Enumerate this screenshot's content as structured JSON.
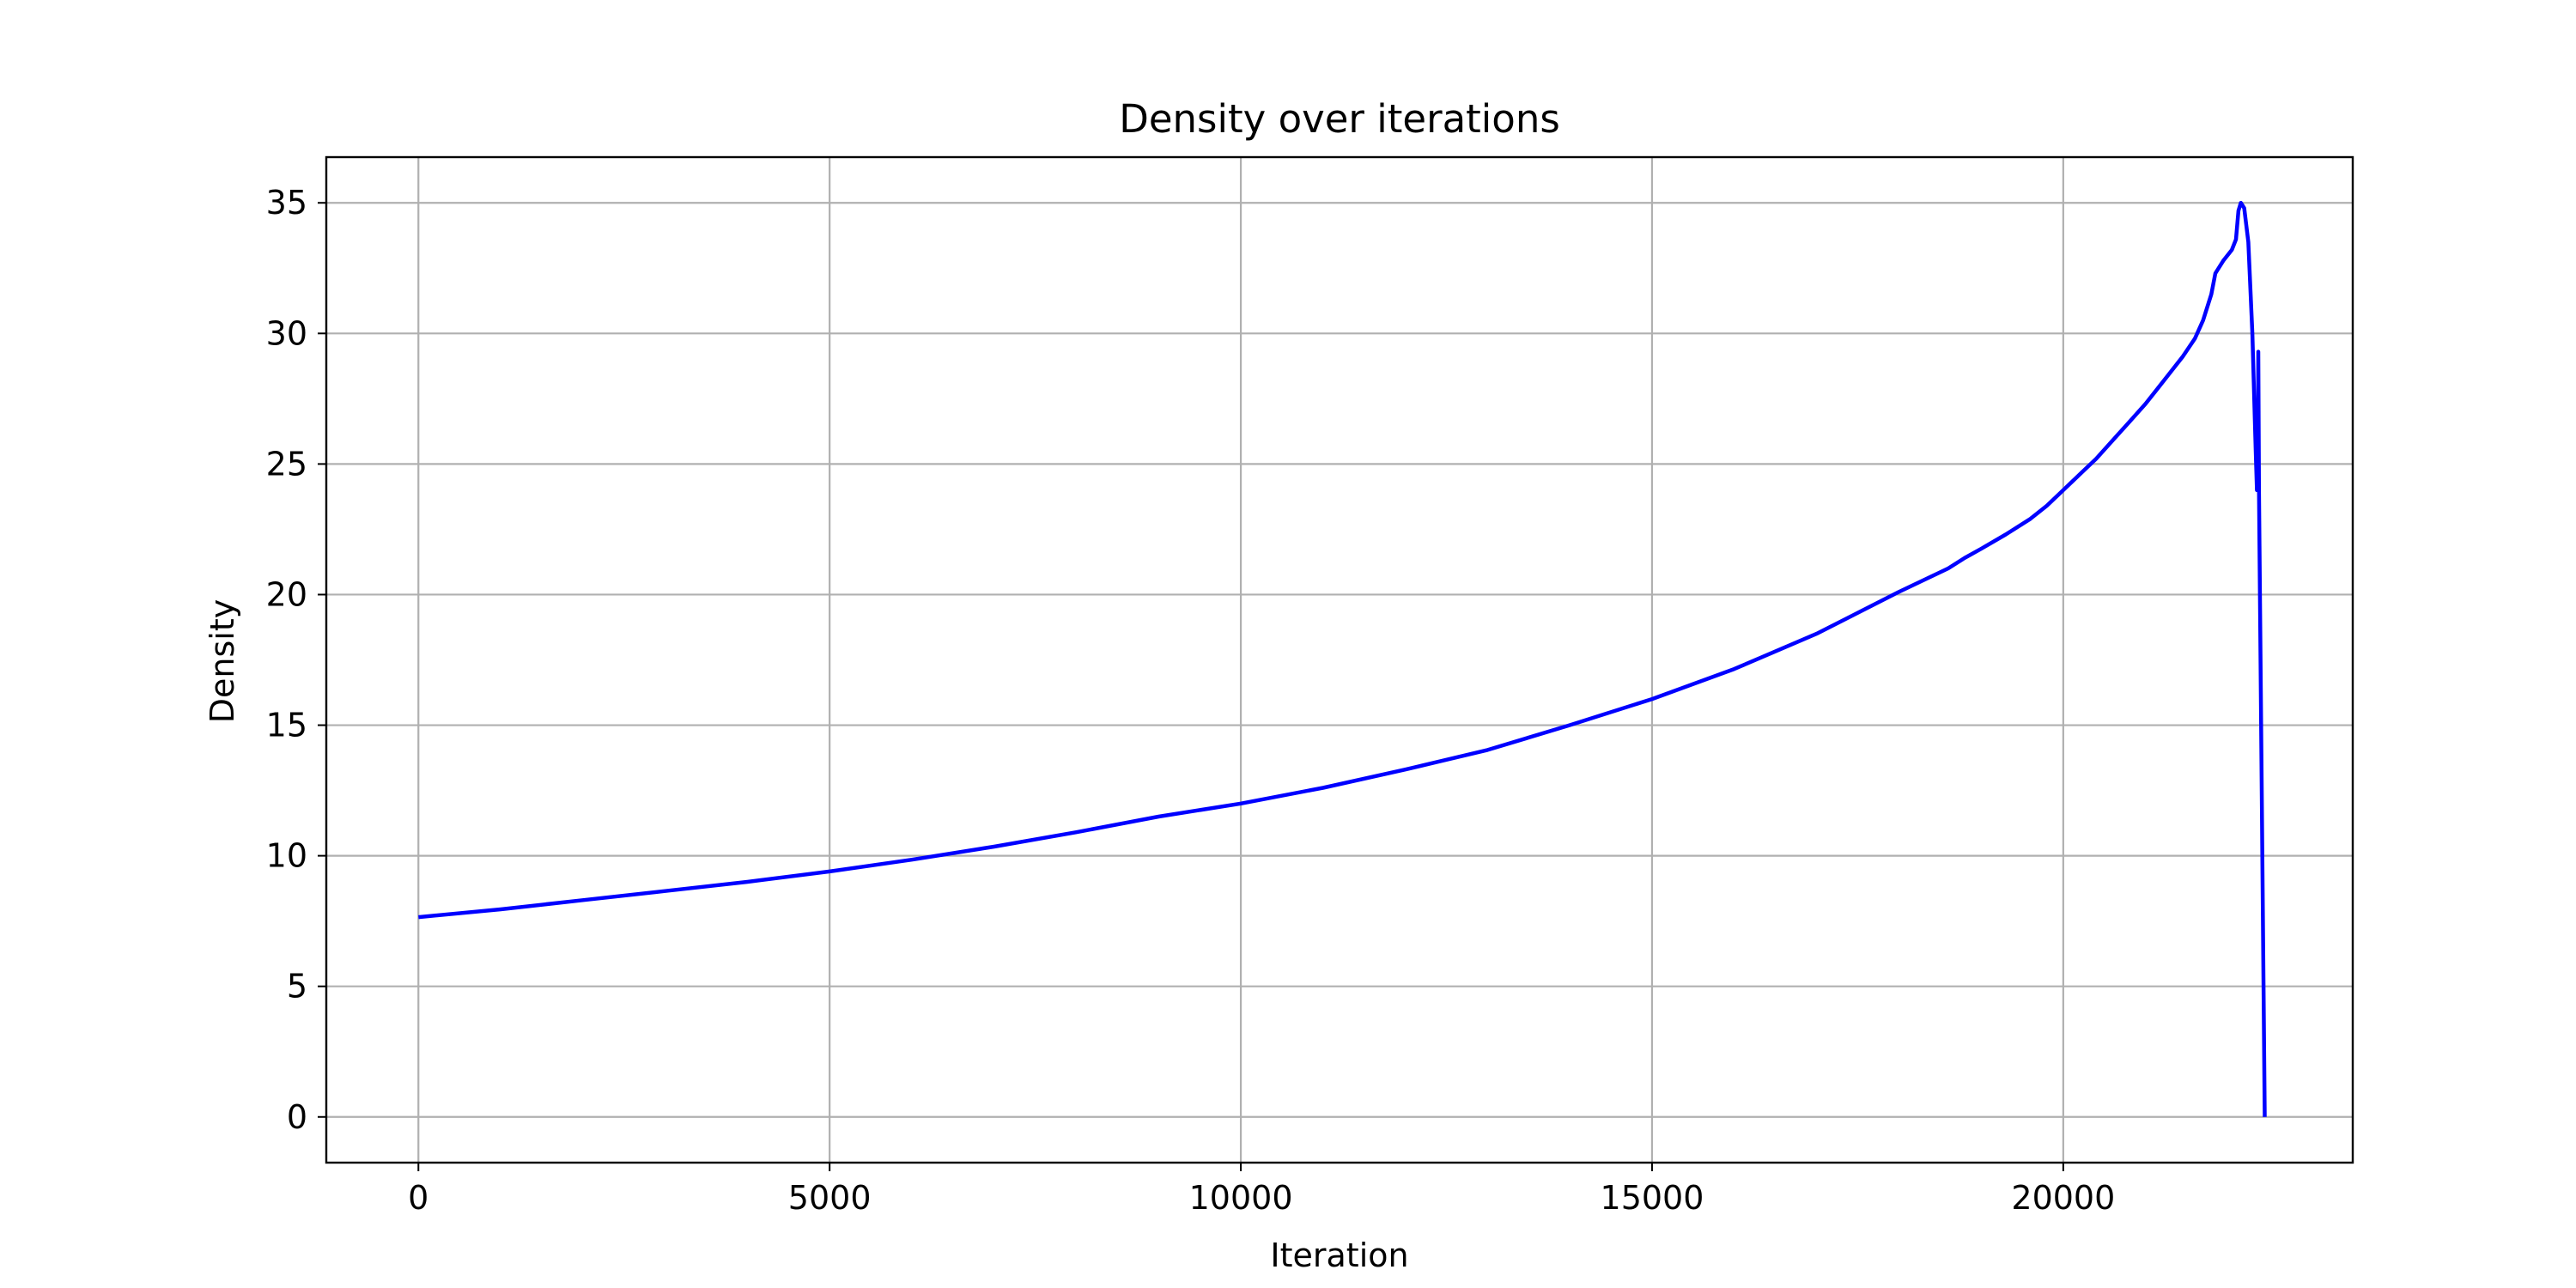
{
  "chart_data": {
    "type": "line",
    "title": "Density over iterations",
    "xlabel": "Iteration",
    "ylabel": "Density",
    "xlim": [
      -1120,
      23520
    ],
    "ylim": [
      -1.75,
      36.75
    ],
    "xticks": [
      0,
      5000,
      10000,
      15000,
      20000
    ],
    "xtick_labels": [
      "0",
      "5000",
      "10000",
      "15000",
      "20000"
    ],
    "yticks": [
      0,
      5,
      10,
      15,
      20,
      25,
      30,
      35
    ],
    "ytick_labels": [
      "0",
      "5",
      "10",
      "15",
      "20",
      "25",
      "30",
      "35"
    ],
    "grid": true,
    "legend": false,
    "series": [
      {
        "color": "#0000ff",
        "points": [
          [
            0,
            7.65
          ],
          [
            1000,
            7.95
          ],
          [
            2000,
            8.3
          ],
          [
            3000,
            8.65
          ],
          [
            4000,
            9.0
          ],
          [
            5000,
            9.4
          ],
          [
            6000,
            9.85
          ],
          [
            7000,
            10.35
          ],
          [
            8000,
            10.9
          ],
          [
            9000,
            11.5
          ],
          [
            10000,
            12.0
          ],
          [
            11000,
            12.6
          ],
          [
            12000,
            13.3
          ],
          [
            13000,
            14.05
          ],
          [
            14000,
            15.0
          ],
          [
            15000,
            16.0
          ],
          [
            16000,
            17.15
          ],
          [
            17000,
            18.5
          ],
          [
            18000,
            20.1
          ],
          [
            18600,
            21.0
          ],
          [
            18800,
            21.4
          ],
          [
            19000,
            21.75
          ],
          [
            19300,
            22.3
          ],
          [
            19600,
            22.9
          ],
          [
            19800,
            23.4
          ],
          [
            20000,
            24.0
          ],
          [
            20200,
            24.6
          ],
          [
            20400,
            25.2
          ],
          [
            20600,
            25.9
          ],
          [
            20800,
            26.6
          ],
          [
            21000,
            27.3
          ],
          [
            21150,
            27.9
          ],
          [
            21300,
            28.5
          ],
          [
            21450,
            29.1
          ],
          [
            21600,
            29.8
          ],
          [
            21700,
            30.5
          ],
          [
            21800,
            31.5
          ],
          [
            21850,
            32.3
          ],
          [
            21950,
            32.8
          ],
          [
            22050,
            33.2
          ],
          [
            22100,
            33.6
          ],
          [
            22130,
            34.7
          ],
          [
            22160,
            35.0
          ],
          [
            22200,
            34.8
          ],
          [
            22250,
            33.5
          ],
          [
            22300,
            30.0
          ],
          [
            22340,
            25.5
          ],
          [
            22355,
            24.0
          ],
          [
            22365,
            24.5
          ],
          [
            22372,
            29.3
          ],
          [
            22380,
            24.0
          ],
          [
            22450,
            0.0
          ]
        ]
      }
    ]
  }
}
